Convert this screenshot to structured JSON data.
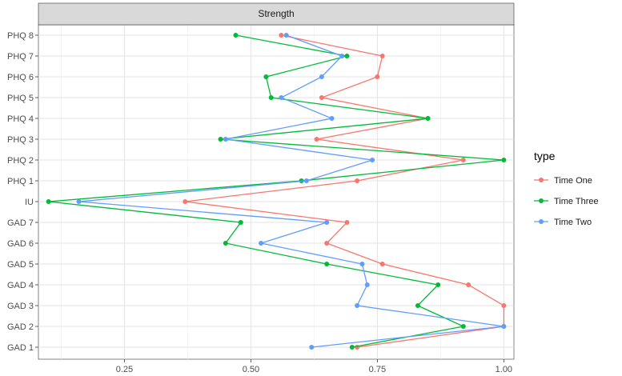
{
  "chart_data": {
    "type": "line",
    "facet_label": "Strength",
    "xlabel": "",
    "ylabel": "",
    "xlim": [
      0.08,
      1.02
    ],
    "x_ticks": [
      "0.25",
      "0.50",
      "0.75",
      "1.00"
    ],
    "x_tick_values": [
      0.25,
      0.5,
      0.75,
      1.0
    ],
    "categories": [
      "GAD 1",
      "GAD 2",
      "GAD 3",
      "GAD 4",
      "GAD 5",
      "GAD 6",
      "GAD 7",
      "IU",
      "PHQ 1",
      "PHQ 2",
      "PHQ 3",
      "PHQ 4",
      "PHQ 5",
      "PHQ 6",
      "PHQ 7",
      "PHQ 8"
    ],
    "grid": true,
    "legend": {
      "title": "type",
      "placement": "right"
    },
    "series": [
      {
        "name": "Time One",
        "color": "#F8766D",
        "values": [
          0.71,
          1.0,
          1.0,
          0.93,
          0.76,
          0.65,
          0.69,
          0.37,
          0.71,
          0.92,
          0.63,
          0.85,
          0.64,
          0.75,
          0.76,
          0.56
        ]
      },
      {
        "name": "Time Three",
        "color": "#00BA38",
        "values": [
          0.7,
          0.92,
          0.83,
          0.87,
          0.65,
          0.45,
          0.48,
          0.1,
          0.6,
          1.0,
          0.44,
          0.85,
          0.54,
          0.53,
          0.69,
          0.47
        ]
      },
      {
        "name": "Time Two",
        "color": "#619CFF",
        "values": [
          0.62,
          1.0,
          0.71,
          0.73,
          0.72,
          0.52,
          0.65,
          0.16,
          0.61,
          0.74,
          0.45,
          0.66,
          0.56,
          0.64,
          0.68,
          0.57
        ]
      }
    ]
  }
}
